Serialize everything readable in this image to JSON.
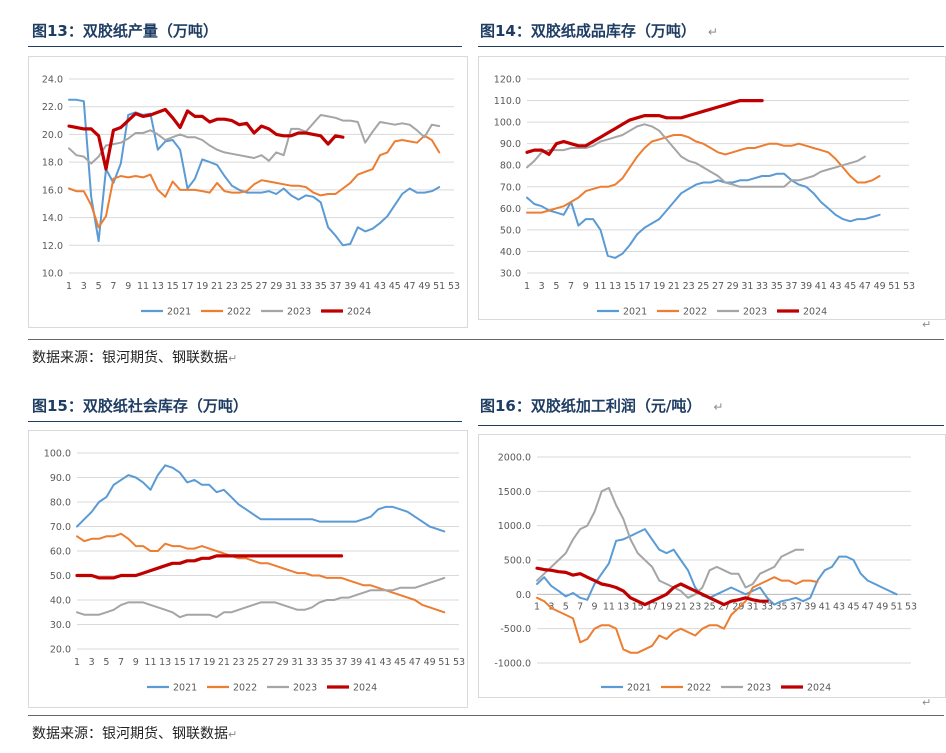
{
  "colors": {
    "s2021": "#5b9bd5",
    "s2022": "#ed7d31",
    "s2023": "#a5a5a5",
    "s2024": "#c00000",
    "title": "#1f3d63"
  },
  "return_mark": "↵",
  "source_top": "数据来源：银河期货、钢联数据",
  "source_bottom": "数据来源：银河期货、钢联数据",
  "chart_data": [
    {
      "id": "c13",
      "type": "line",
      "title": "图13：双胶纸产量（万吨）",
      "ylim": [
        10,
        24
      ],
      "ystep": 2,
      "ydec": 1,
      "x_ticks": [
        "1",
        "3",
        "5",
        "7",
        "9",
        "11",
        "13",
        "15",
        "17",
        "19",
        "21",
        "23",
        "25",
        "27",
        "29",
        "31",
        "33",
        "35",
        "37",
        "39",
        "41",
        "43",
        "45",
        "47",
        "49",
        "51",
        "53"
      ],
      "legend": [
        "2021",
        "2022",
        "2023",
        "2024"
      ],
      "series": [
        {
          "name": "2021",
          "values": [
            22.5,
            22.5,
            22.4,
            15.5,
            12.3,
            17.5,
            16.5,
            17.9,
            21.4,
            21.6,
            21.4,
            21.5,
            18.9,
            19.5,
            19.6,
            18.9,
            16.1,
            16.8,
            18.2,
            18.0,
            17.8,
            17.0,
            16.3,
            16.0,
            15.8,
            15.8,
            15.8,
            15.9,
            15.7,
            16.1,
            15.6,
            15.3,
            15.6,
            15.5,
            15.1,
            13.3,
            12.7,
            12.0,
            12.1,
            13.3,
            13.0,
            13.2,
            13.6,
            14.1,
            14.9,
            15.7,
            16.1,
            15.8,
            15.8,
            15.9,
            16.2
          ]
        },
        {
          "name": "2022",
          "values": [
            16.1,
            15.9,
            15.9,
            14.9,
            13.3,
            14.1,
            16.8,
            17.0,
            16.9,
            17.0,
            16.9,
            17.1,
            16.0,
            15.5,
            16.6,
            16.0,
            16.0,
            16.0,
            15.9,
            15.8,
            16.5,
            15.9,
            15.8,
            15.8,
            15.9,
            16.4,
            16.7,
            16.6,
            16.5,
            16.4,
            16.3,
            16.3,
            16.2,
            15.8,
            15.6,
            15.7,
            15.7,
            16.1,
            16.5,
            17.1,
            17.3,
            17.5,
            18.5,
            18.7,
            19.5,
            19.6,
            19.5,
            19.4,
            19.9,
            19.6,
            18.7
          ]
        },
        {
          "name": "2023",
          "values": [
            19.0,
            18.5,
            18.4,
            17.9,
            18.4,
            19.2,
            19.3,
            19.4,
            19.7,
            20.1,
            20.1,
            20.3,
            20.0,
            19.6,
            19.8,
            20.0,
            19.8,
            19.8,
            19.6,
            19.2,
            18.9,
            18.7,
            18.6,
            18.5,
            18.4,
            18.3,
            18.5,
            18.1,
            18.7,
            18.5,
            20.4,
            20.4,
            20.2,
            20.8,
            21.4,
            21.3,
            21.2,
            21.0,
            21.0,
            20.9,
            19.4,
            20.2,
            20.9,
            20.8,
            20.7,
            20.8,
            20.7,
            20.3,
            19.8,
            20.7,
            20.6
          ]
        },
        {
          "name": "2024",
          "values": [
            20.6,
            20.5,
            20.4,
            20.4,
            19.9,
            17.5,
            20.3,
            20.5,
            21.0,
            21.5,
            21.3,
            21.4,
            21.6,
            21.8,
            21.2,
            20.5,
            21.7,
            21.3,
            21.3,
            20.9,
            21.1,
            21.1,
            21.0,
            20.7,
            20.8,
            20.1,
            20.6,
            20.4,
            20.0,
            19.9,
            19.9,
            20.1,
            20.1,
            20.0,
            19.9,
            19.3,
            19.9,
            19.8
          ]
        }
      ]
    },
    {
      "id": "c14",
      "type": "line",
      "title": "图14：双胶纸成品库存（万吨）",
      "ylim": [
        30,
        120
      ],
      "ystep": 10,
      "ydec": 1,
      "x_ticks": [
        "1",
        "3",
        "5",
        "7",
        "9",
        "11",
        "13",
        "15",
        "17",
        "19",
        "21",
        "23",
        "25",
        "27",
        "29",
        "31",
        "33",
        "35",
        "37",
        "39",
        "41",
        "43",
        "45",
        "47",
        "49",
        "51",
        "53"
      ],
      "legend": [
        "2021",
        "2022",
        "2023",
        "2024"
      ],
      "series": [
        {
          "name": "2021",
          "values": [
            65,
            62,
            61,
            59,
            58,
            57,
            63,
            52,
            55,
            55,
            50,
            38,
            37,
            39,
            43,
            48,
            51,
            53,
            55,
            59,
            63,
            67,
            69,
            71,
            72,
            72,
            73,
            72,
            72,
            73,
            73,
            74,
            75,
            75,
            76,
            76,
            73,
            71,
            70,
            67,
            63,
            60,
            57,
            55,
            54,
            55,
            55,
            56,
            57
          ]
        },
        {
          "name": "2022",
          "values": [
            58,
            58,
            58,
            59,
            60,
            61,
            63,
            65,
            68,
            69,
            70,
            70,
            71,
            74,
            79,
            84,
            88,
            91,
            92,
            93,
            94,
            94,
            93,
            91,
            90,
            88,
            86,
            85,
            86,
            87,
            88,
            88,
            89,
            90,
            90,
            89,
            89,
            90,
            89,
            88,
            87,
            86,
            83,
            79,
            75,
            72,
            72,
            73,
            75
          ]
        },
        {
          "name": "2023",
          "values": [
            79,
            82,
            86,
            87,
            87,
            87,
            88,
            88,
            88,
            89,
            91,
            92,
            93,
            94,
            96,
            98,
            99,
            98,
            96,
            92,
            88,
            84,
            82,
            81,
            79,
            77,
            75,
            72,
            71,
            70,
            70,
            70,
            70,
            70,
            70,
            70,
            73,
            73,
            74,
            75,
            77,
            78,
            79,
            80,
            81,
            82,
            84
          ]
        },
        {
          "name": "2024",
          "values": [
            86,
            87,
            87,
            85,
            90,
            91,
            90,
            89,
            89,
            91,
            93,
            95,
            97,
            99,
            101,
            102,
            103,
            103,
            103,
            102,
            102,
            102,
            103,
            104,
            105,
            106,
            107,
            108,
            109,
            110,
            110,
            110,
            110
          ]
        }
      ]
    },
    {
      "id": "c15",
      "type": "line",
      "title": "图15：双胶纸社会库存（万吨）",
      "ylim": [
        20,
        100
      ],
      "ystep": 10,
      "ydec": 1,
      "x_ticks": [
        "1",
        "3",
        "5",
        "7",
        "9",
        "11",
        "13",
        "15",
        "17",
        "19",
        "21",
        "23",
        "25",
        "27",
        "29",
        "31",
        "33",
        "35",
        "37",
        "39",
        "41",
        "43",
        "45",
        "47",
        "49",
        "51",
        "53"
      ],
      "legend": [
        "2021",
        "2022",
        "2023",
        "2024"
      ],
      "series": [
        {
          "name": "2021",
          "values": [
            70,
            73,
            76,
            80,
            82,
            87,
            89,
            91,
            90,
            88,
            85,
            91,
            95,
            94,
            92,
            88,
            89,
            87,
            87,
            84,
            85,
            82,
            79,
            77,
            75,
            73,
            73,
            73,
            73,
            73,
            73,
            73,
            73,
            72,
            72,
            72,
            72,
            72,
            72,
            73,
            74,
            77,
            78,
            78,
            77,
            76,
            74,
            72,
            70,
            69,
            68
          ]
        },
        {
          "name": "2022",
          "values": [
            66,
            64,
            65,
            65,
            66,
            66,
            67,
            65,
            62,
            62,
            60,
            60,
            63,
            62,
            62,
            61,
            61,
            62,
            61,
            60,
            59,
            58,
            57,
            57,
            56,
            55,
            55,
            54,
            53,
            52,
            51,
            51,
            50,
            50,
            49,
            49,
            49,
            48,
            47,
            46,
            46,
            45,
            44,
            43,
            42,
            41,
            40,
            38,
            37,
            36,
            35
          ]
        },
        {
          "name": "2023",
          "values": [
            35,
            34,
            34,
            34,
            35,
            36,
            38,
            39,
            39,
            39,
            38,
            37,
            36,
            35,
            33,
            34,
            34,
            34,
            34,
            33,
            35,
            35,
            36,
            37,
            38,
            39,
            39,
            39,
            38,
            37,
            36,
            36,
            37,
            39,
            40,
            40,
            41,
            41,
            42,
            43,
            44,
            44,
            44,
            44,
            45,
            45,
            45,
            46,
            47,
            48,
            49
          ]
        },
        {
          "name": "2024",
          "values": [
            50,
            50,
            50,
            49,
            49,
            49,
            50,
            50,
            50,
            51,
            52,
            53,
            54,
            55,
            55,
            56,
            56,
            57,
            57,
            58,
            58,
            58,
            58,
            58,
            58,
            58,
            58,
            58,
            58,
            58,
            58,
            58,
            58,
            58,
            58,
            58,
            58
          ]
        }
      ]
    },
    {
      "id": "c16",
      "type": "line",
      "title": "图16：双胶纸加工利润（元/吨）",
      "ylim": [
        -1000,
        2000
      ],
      "ystep": 500,
      "ydec": 1,
      "x_ticks": [
        "1",
        "3",
        "5",
        "7",
        "9",
        "11",
        "13",
        "15",
        "17",
        "19",
        "21",
        "23",
        "25",
        "27",
        "29",
        "31",
        "33",
        "35",
        "37",
        "39",
        "41",
        "43",
        "45",
        "47",
        "49",
        "51",
        "53"
      ],
      "legend": [
        "2021",
        "2022",
        "2023",
        "2024"
      ],
      "series": [
        {
          "name": "2021",
          "values": [
            150,
            250,
            120,
            50,
            -30,
            20,
            -50,
            -80,
            150,
            300,
            450,
            780,
            800,
            850,
            900,
            950,
            800,
            650,
            600,
            650,
            500,
            350,
            100,
            -20,
            -50,
            0,
            50,
            100,
            50,
            0,
            50,
            100,
            -50,
            -150,
            -100,
            -80,
            -50,
            -100,
            -50,
            200,
            350,
            400,
            550,
            550,
            500,
            300,
            200,
            150,
            100,
            50,
            0
          ]
        },
        {
          "name": "2022",
          "values": [
            -50,
            -100,
            -200,
            -250,
            -300,
            -350,
            -700,
            -650,
            -500,
            -450,
            -450,
            -500,
            -800,
            -850,
            -850,
            -800,
            -750,
            -600,
            -650,
            -550,
            -500,
            -550,
            -600,
            -500,
            -450,
            -450,
            -500,
            -300,
            -200,
            -100,
            100,
            150,
            200,
            250,
            200,
            200,
            150,
            200,
            200,
            180
          ]
        },
        {
          "name": "2023",
          "values": [
            200,
            300,
            400,
            500,
            600,
            800,
            950,
            1000,
            1200,
            1500,
            1550,
            1300,
            1100,
            800,
            600,
            500,
            400,
            200,
            150,
            100,
            50,
            -50,
            0,
            100,
            350,
            400,
            350,
            300,
            300,
            100,
            150,
            300,
            350,
            400,
            550,
            600,
            650,
            650
          ]
        },
        {
          "name": "2024",
          "values": [
            380,
            360,
            350,
            330,
            320,
            280,
            300,
            250,
            200,
            150,
            130,
            100,
            50,
            -50,
            -100,
            -150,
            -100,
            -50,
            0,
            100,
            150,
            100,
            50,
            0,
            -50,
            -100,
            -150,
            -100,
            -80,
            -50,
            -80,
            -100,
            -100
          ]
        }
      ]
    }
  ]
}
